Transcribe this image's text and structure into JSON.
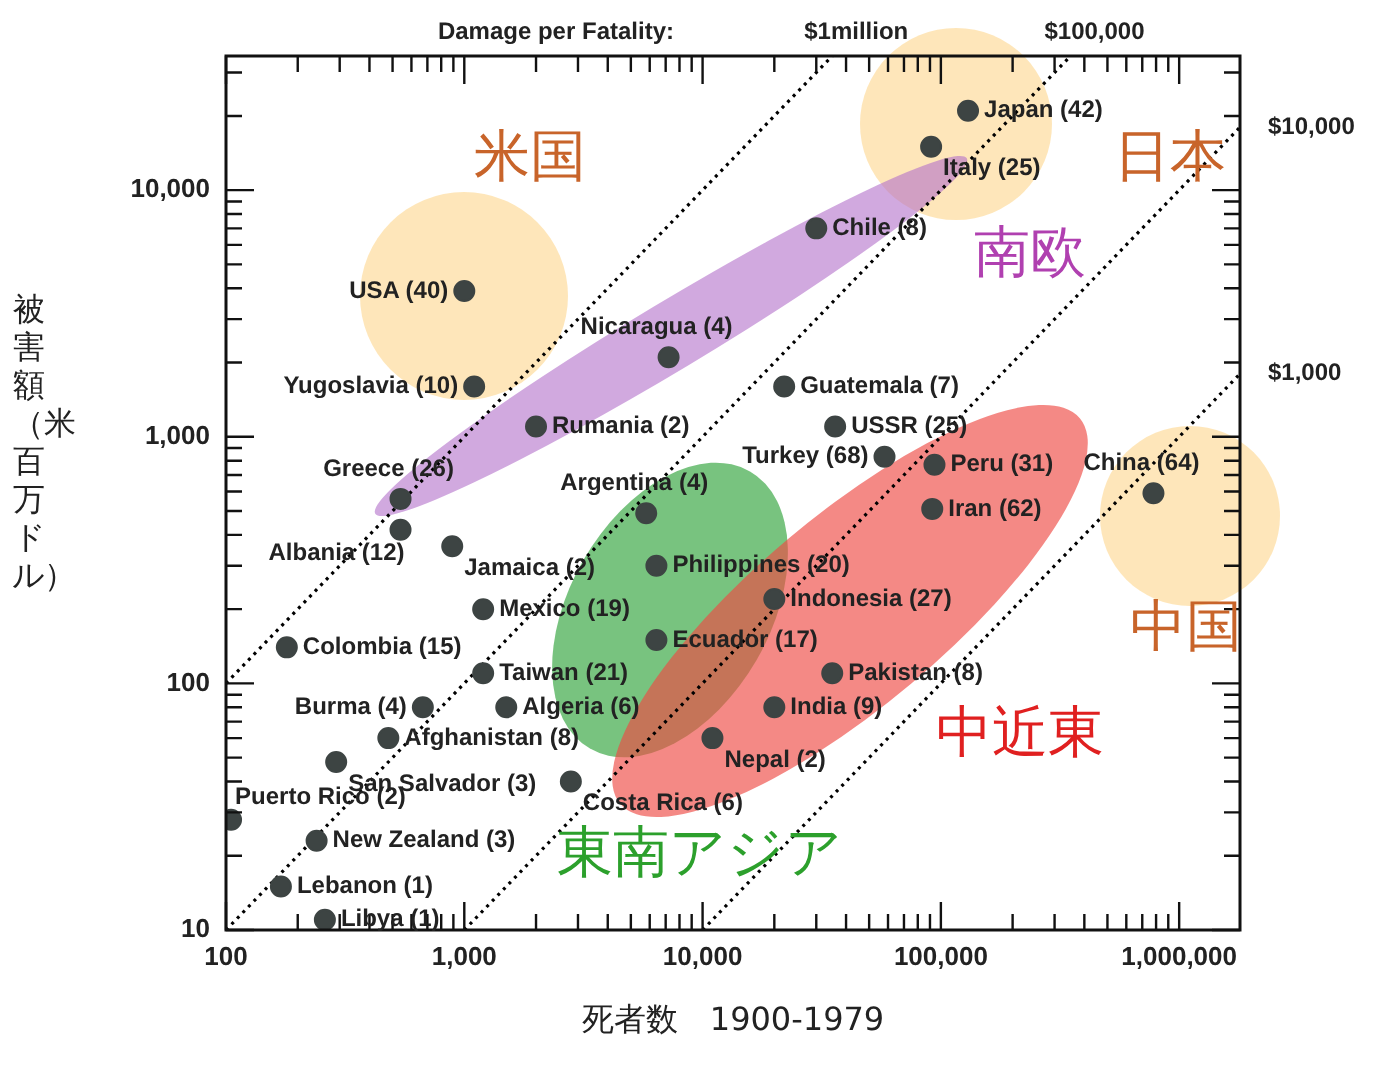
{
  "chart_data": {
    "type": "scatter",
    "xlabel": "死者数　1900-1979",
    "ylabel": "被害額（米百万ドル）",
    "log": "xy",
    "grid": false,
    "legend": false,
    "xlim": [
      100,
      1800000
    ],
    "ylim": [
      10,
      35000
    ],
    "xticks": [
      {
        "value": 100,
        "label": "100"
      },
      {
        "value": 200,
        "label": null
      },
      {
        "value": 300,
        "label": null
      },
      {
        "value": 400,
        "label": null
      },
      {
        "value": 500,
        "label": null
      },
      {
        "value": 600,
        "label": null
      },
      {
        "value": 700,
        "label": null
      },
      {
        "value": 800,
        "label": null
      },
      {
        "value": 900,
        "label": null
      },
      {
        "value": 1000,
        "label": "1,000"
      },
      {
        "value": 2000,
        "label": null
      },
      {
        "value": 3000,
        "label": null
      },
      {
        "value": 4000,
        "label": null
      },
      {
        "value": 5000,
        "label": null
      },
      {
        "value": 6000,
        "label": null
      },
      {
        "value": 7000,
        "label": null
      },
      {
        "value": 8000,
        "label": null
      },
      {
        "value": 9000,
        "label": null
      },
      {
        "value": 10000,
        "label": "10,000"
      },
      {
        "value": 20000,
        "label": null
      },
      {
        "value": 30000,
        "label": null
      },
      {
        "value": 40000,
        "label": null
      },
      {
        "value": 50000,
        "label": null
      },
      {
        "value": 60000,
        "label": null
      },
      {
        "value": 70000,
        "label": null
      },
      {
        "value": 80000,
        "label": null
      },
      {
        "value": 90000,
        "label": null
      },
      {
        "value": 100000,
        "label": "100,000"
      },
      {
        "value": 200000,
        "label": null
      },
      {
        "value": 300000,
        "label": null
      },
      {
        "value": 400000,
        "label": null
      },
      {
        "value": 500000,
        "label": null
      },
      {
        "value": 600000,
        "label": null
      },
      {
        "value": 700000,
        "label": null
      },
      {
        "value": 800000,
        "label": null
      },
      {
        "value": 900000,
        "label": null
      },
      {
        "value": 1000000,
        "label": "1,000,000"
      }
    ],
    "yticks": [
      {
        "value": 10,
        "label": "10"
      },
      {
        "value": 20,
        "label": null
      },
      {
        "value": 30,
        "label": null
      },
      {
        "value": 40,
        "label": null
      },
      {
        "value": 50,
        "label": null
      },
      {
        "value": 60,
        "label": null
      },
      {
        "value": 70,
        "label": null
      },
      {
        "value": 80,
        "label": null
      },
      {
        "value": 90,
        "label": null
      },
      {
        "value": 100,
        "label": "100"
      },
      {
        "value": 200,
        "label": null
      },
      {
        "value": 300,
        "label": null
      },
      {
        "value": 400,
        "label": null
      },
      {
        "value": 500,
        "label": null
      },
      {
        "value": 600,
        "label": null
      },
      {
        "value": 700,
        "label": null
      },
      {
        "value": 800,
        "label": null
      },
      {
        "value": 900,
        "label": null
      },
      {
        "value": 1000,
        "label": "1,000"
      },
      {
        "value": 2000,
        "label": null
      },
      {
        "value": 3000,
        "label": null
      },
      {
        "value": 4000,
        "label": null
      },
      {
        "value": 5000,
        "label": null
      },
      {
        "value": 6000,
        "label": null
      },
      {
        "value": 7000,
        "label": null
      },
      {
        "value": 8000,
        "label": null
      },
      {
        "value": 9000,
        "label": null
      },
      {
        "value": 10000,
        "label": "10,000"
      },
      {
        "value": 20000,
        "label": null
      },
      {
        "value": 30000,
        "label": null
      }
    ],
    "series": [
      {
        "type": "scatter",
        "color": "#3d4443",
        "marker": "circle",
        "x": [
          130000,
          91000,
          30000,
          1000,
          7200,
          1100,
          2000,
          22000,
          36000,
          540,
          540,
          890,
          1200,
          180,
          1200,
          670,
          1500,
          480,
          290,
          2800,
          105,
          240,
          170,
          260,
          5800,
          6400,
          6400,
          20000,
          58000,
          94000,
          92000,
          35000,
          20000,
          11000,
          780000
        ],
        "values": [
          21000,
          15000,
          7000,
          3900,
          2100,
          1600,
          1100,
          1600,
          1100,
          560,
          420,
          360,
          200,
          140,
          110,
          80,
          80,
          60,
          48,
          40,
          28,
          23,
          15,
          11,
          490,
          300,
          150,
          220,
          830,
          770,
          510,
          110,
          80,
          60,
          590
        ]
      },
      {
        "type": "line",
        "color": "#000000",
        "marker": "none",
        "line_style": "dotted",
        "x": [
          100,
          35000
        ],
        "values": [
          100,
          35000
        ]
      },
      {
        "type": "line",
        "color": "#000000",
        "marker": "none",
        "line_style": "dotted",
        "x": [
          100,
          350000
        ],
        "values": [
          10,
          35000
        ]
      },
      {
        "type": "line",
        "color": "#000000",
        "marker": "none",
        "line_style": "dotted",
        "x": [
          1000,
          1800000
        ],
        "values": [
          10,
          18000
        ]
      },
      {
        "type": "line",
        "color": "#000000",
        "marker": "none",
        "line_style": "dotted",
        "x": [
          10000,
          1800000
        ],
        "values": [
          10,
          1800
        ]
      }
    ],
    "annotations": [
      "Damage per Fatality:",
      {
        "text": "$1million",
        "x": 35000,
        "y": 35000
      },
      {
        "text": "$100,000",
        "x": 350000,
        "y": 35000
      },
      {
        "text": "$10,000",
        "x": 1800000,
        "y": 18000
      },
      {
        "text": "$1,000",
        "x": 1800000,
        "y": 1800
      },
      "米国",
      "日本",
      "南欧",
      "中国",
      "中近東",
      "東南アジア",
      {
        "text": "Japan (42)",
        "x": 130000,
        "y": 21000
      },
      {
        "text": "Italy (25)",
        "x": 91000,
        "y": 15000
      },
      {
        "text": "Chile (8)",
        "x": 30000,
        "y": 7000
      },
      {
        "text": "USA (40)",
        "x": 1000,
        "y": 3900
      },
      {
        "text": "Nicaragua (4)",
        "x": 7200,
        "y": 2100
      },
      {
        "text": "Yugoslavia (10)",
        "x": 1100,
        "y": 1600
      },
      {
        "text": "Rumania (2)",
        "x": 2000,
        "y": 1100
      },
      {
        "text": "Guatemala (7)",
        "x": 22000,
        "y": 1600
      },
      {
        "text": "USSR (25)",
        "x": 36000,
        "y": 1100
      },
      {
        "text": "Greece (26)",
        "x": 540,
        "y": 560
      },
      {
        "text": "Albania (12)",
        "x": 540,
        "y": 420
      },
      {
        "text": "Jamaica (2)",
        "x": 890,
        "y": 360
      },
      {
        "text": "Mexico (19)",
        "x": 1200,
        "y": 200
      },
      {
        "text": "Colombia (15)",
        "x": 180,
        "y": 140
      },
      {
        "text": "Taiwan (21)",
        "x": 1200,
        "y": 110
      },
      {
        "text": "Burma (4)",
        "x": 670,
        "y": 80
      },
      {
        "text": "Algeria (6)",
        "x": 1500,
        "y": 80
      },
      {
        "text": "Afghanistan (8)",
        "x": 480,
        "y": 60
      },
      {
        "text": "San Salvador (3)",
        "x": 290,
        "y": 48
      },
      {
        "text": "Costa Rica (6)",
        "x": 2800,
        "y": 40
      },
      {
        "text": "Puerto Rico (2)",
        "x": 105,
        "y": 28
      },
      {
        "text": "New Zealand (3)",
        "x": 240,
        "y": 23
      },
      {
        "text": "Lebanon (1)",
        "x": 170,
        "y": 15
      },
      {
        "text": "Libya (1)",
        "x": 260,
        "y": 11
      },
      {
        "text": "Argentina (4)",
        "x": 5800,
        "y": 490
      },
      {
        "text": "Philippines (20)",
        "x": 6400,
        "y": 300
      },
      {
        "text": "Ecuador (17)",
        "x": 6400,
        "y": 150
      },
      {
        "text": "Indonesia (27)",
        "x": 20000,
        "y": 220
      },
      {
        "text": "Turkey (68)",
        "x": 58000,
        "y": 830
      },
      {
        "text": "Peru (31)",
        "x": 94000,
        "y": 770
      },
      {
        "text": "Iran (62)",
        "x": 92000,
        "y": 510
      },
      {
        "text": "Pakistan (8)",
        "x": 35000,
        "y": 110
      },
      {
        "text": "India (9)",
        "x": 20000,
        "y": 80
      },
      {
        "text": "Nepal (2)",
        "x": 11000,
        "y": 60
      },
      {
        "text": "China (64)",
        "x": 780000,
        "y": 590
      }
    ]
  }
}
